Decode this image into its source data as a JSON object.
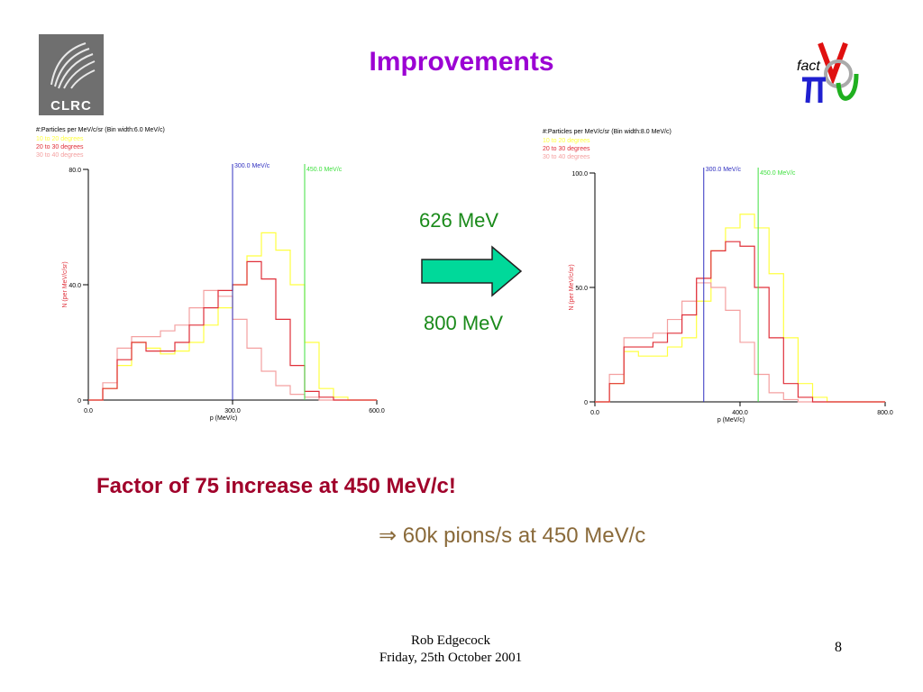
{
  "slide": {
    "title": "Improvements",
    "logo_left_text": "CLRC",
    "logo_right_text": "fact",
    "energy_top": "626 MeV",
    "energy_bottom": "800 MeV",
    "factor_text": "Factor of 75 increase at 450 MeV/c!",
    "pions_text": "⇒ 60k pions/s at 450 MeV/c",
    "footer_name": "Rob Edgecock",
    "footer_date": "Friday, 25th October 2001",
    "page_number": "8",
    "colors": {
      "title": "#9b00d3",
      "energy": "#1a8a1a",
      "factor": "#a0002a",
      "pions": "#8a6a3a",
      "arrow_fill": "#00d99a",
      "yellow": "#ffff40",
      "red": "#e0303a",
      "pink": "#f4a0a0",
      "blue_line": "#3030c0",
      "green_line": "#40e040"
    }
  },
  "chart_data": [
    {
      "type": "line",
      "title": "#:Particles per MeV/c/sr (Bin width:6.0 MeV/c)",
      "legend": [
        "10 to 20 degrees",
        "20 to 30 degrees",
        "30 to 40 degrees"
      ],
      "legend_colors": [
        "#ffff40",
        "#e0303a",
        "#f4a0a0"
      ],
      "xlabel": "p (MeV/c)",
      "ylabel": "N (per MeV/c/sr)",
      "xlim": [
        0,
        600
      ],
      "ylim": [
        0,
        80
      ],
      "x_ticks": [
        "0.0",
        "300.0",
        "600.0"
      ],
      "x_tick_values": [
        0,
        300,
        600
      ],
      "y_ticks": [
        "0",
        "40.0",
        "80.0"
      ],
      "y_tick_values": [
        0,
        40,
        80
      ],
      "vlines": [
        {
          "x": 300,
          "label": "300.0 MeV/c",
          "color": "#3030c0"
        },
        {
          "x": 450,
          "label": "450.0 MeV/c",
          "color": "#40e040"
        }
      ],
      "x": [
        0,
        30,
        60,
        90,
        120,
        150,
        180,
        210,
        240,
        270,
        300,
        330,
        360,
        390,
        420,
        450,
        480,
        510,
        540,
        570,
        600
      ],
      "series": [
        {
          "name": "10 to 20 degrees",
          "color": "#ffff40",
          "values": [
            0,
            4,
            12,
            20,
            18,
            16,
            17,
            20,
            26,
            32,
            40,
            50,
            58,
            52,
            40,
            20,
            4,
            1,
            0,
            0,
            0
          ]
        },
        {
          "name": "20 to 30 degrees",
          "color": "#e0303a",
          "values": [
            0,
            4,
            14,
            20,
            17,
            17,
            20,
            26,
            32,
            38,
            40,
            48,
            42,
            28,
            12,
            3,
            1,
            0,
            0,
            0,
            0
          ]
        },
        {
          "name": "30 to 40 degrees",
          "color": "#f4a0a0",
          "values": [
            0,
            6,
            18,
            22,
            22,
            24,
            26,
            32,
            38,
            36,
            28,
            18,
            10,
            5,
            2,
            1,
            0,
            0,
            0,
            0,
            0
          ]
        }
      ]
    },
    {
      "type": "line",
      "title": "#:Particles per MeV/c/sr (Bin width:8.0 MeV/c)",
      "legend": [
        "10 to 20 degrees",
        "20 to 30 degrees",
        "30 to 40 degrees"
      ],
      "legend_colors": [
        "#ffff40",
        "#e0303a",
        "#f4a0a0"
      ],
      "xlabel": "p (MeV/c)",
      "ylabel": "N (per MeV/c/sr)",
      "xlim": [
        0,
        800
      ],
      "ylim": [
        0,
        100
      ],
      "x_ticks": [
        "0.0",
        "400.0",
        "800.0"
      ],
      "x_tick_values": [
        0,
        400,
        800
      ],
      "y_ticks": [
        "0",
        "50.0",
        "100.0"
      ],
      "y_tick_values": [
        0,
        50,
        100
      ],
      "vlines": [
        {
          "x": 300,
          "label": "300.0 MeV/c",
          "color": "#3030c0"
        },
        {
          "x": 450,
          "label": "450.0 MeV/c",
          "color": "#40e040"
        }
      ],
      "x": [
        0,
        40,
        80,
        120,
        160,
        200,
        240,
        280,
        320,
        360,
        400,
        440,
        480,
        520,
        560,
        600,
        640,
        680,
        720,
        760,
        800
      ],
      "series": [
        {
          "name": "10 to 20 degrees",
          "color": "#ffff40",
          "values": [
            0,
            8,
            22,
            20,
            20,
            24,
            28,
            44,
            66,
            76,
            82,
            76,
            56,
            28,
            8,
            2,
            0,
            0,
            0,
            0,
            0
          ]
        },
        {
          "name": "20 to 30 degrees",
          "color": "#e0303a",
          "values": [
            0,
            8,
            24,
            24,
            26,
            30,
            38,
            54,
            66,
            70,
            68,
            50,
            28,
            8,
            2,
            0,
            0,
            0,
            0,
            0,
            0
          ]
        },
        {
          "name": "30 to 40 degrees",
          "color": "#f4a0a0",
          "values": [
            0,
            12,
            28,
            28,
            30,
            36,
            44,
            52,
            50,
            40,
            26,
            12,
            4,
            1,
            0,
            0,
            0,
            0,
            0,
            0,
            0
          ]
        }
      ]
    }
  ]
}
